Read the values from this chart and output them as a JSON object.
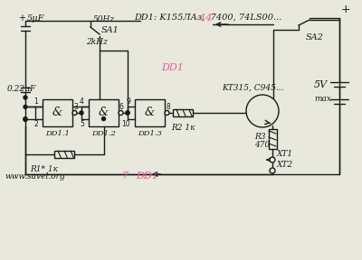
{
  "title": "DD1: K155ЛАз,  7400, 74LS00...",
  "text_dd1_pink": "DD1",
  "text_14": "14",
  "text_7": "7",
  "text_url": "www.savel.org",
  "text_sa1": "SA1",
  "text_sa2": "SA2",
  "text_50hz": "50Hz",
  "text_2khz": "2kHz",
  "text_5uf": "5μF",
  "text_022uf": "0.22μF",
  "text_5v": "5V",
  "text_max": "max",
  "text_r1": "R1* 1к",
  "text_r2": "R2 1к",
  "text_r3": "R3",
  "text_r3b": "470",
  "text_kt315": "KT315, C945...",
  "text_xt1": "XT1",
  "text_xt2": "XT2",
  "text_dd11": "DD1.1",
  "text_dd12": "DD1.2",
  "text_dd13": "DD1.3",
  "color_black": "#1a1a1a",
  "color_pink": "#e060a0",
  "bg_color": "#e8e8dc",
  "lw": 1.0,
  "fig_w": 4.0,
  "fig_h": 2.88
}
